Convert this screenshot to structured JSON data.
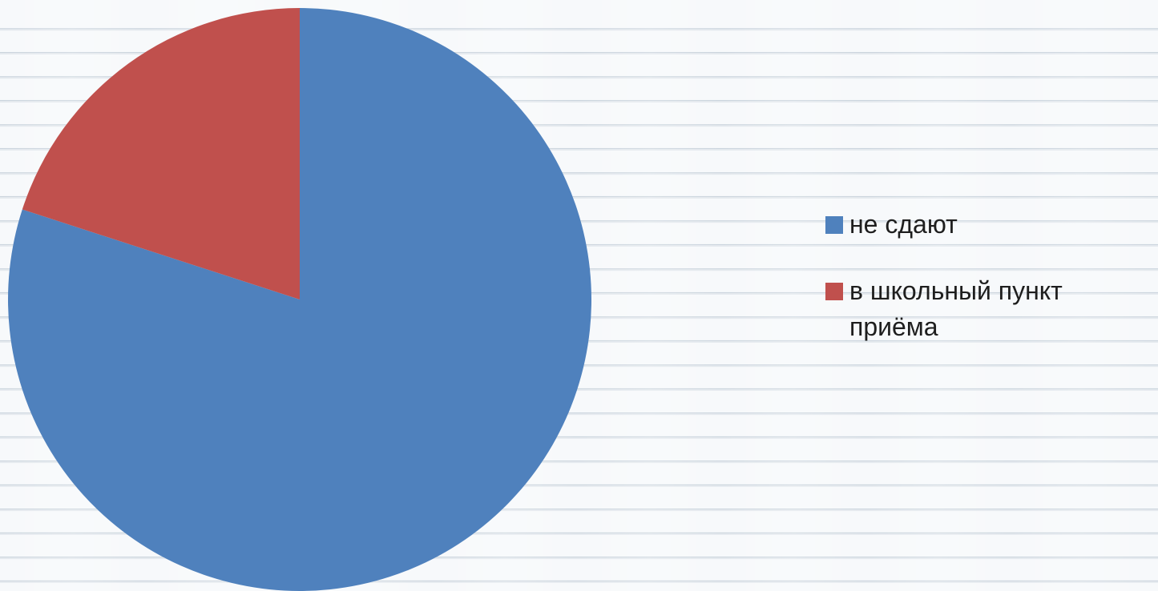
{
  "chart_data": {
    "type": "pie",
    "title": "",
    "categories": [
      "не сдают",
      "в школьный пункт приёма"
    ],
    "values": [
      80,
      20
    ],
    "colors": [
      "#4f81bd",
      "#c0504d"
    ],
    "start_angle_deg": 0,
    "direction": "clockwise",
    "legend_position": "right"
  },
  "legend": {
    "items": [
      {
        "label": "не сдают",
        "color": "#4f81bd"
      },
      {
        "label": "в школьный пункт приёма",
        "color": "#c0504d"
      }
    ]
  }
}
